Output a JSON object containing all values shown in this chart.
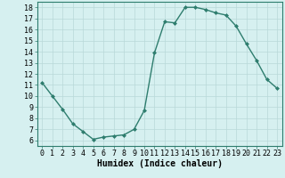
{
  "x": [
    0,
    1,
    2,
    3,
    4,
    5,
    6,
    7,
    8,
    9,
    10,
    11,
    12,
    13,
    14,
    15,
    16,
    17,
    18,
    19,
    20,
    21,
    22,
    23
  ],
  "y": [
    11.2,
    10.0,
    8.8,
    7.5,
    6.8,
    6.1,
    6.3,
    6.4,
    6.5,
    7.0,
    8.7,
    13.9,
    16.7,
    16.6,
    18.0,
    18.0,
    17.8,
    17.5,
    17.3,
    16.3,
    14.7,
    13.2,
    11.5,
    10.7
  ],
  "line_color": "#2e7d6e",
  "marker": "D",
  "markersize": 2.0,
  "bg_color": "#d6f0f0",
  "grid_color": "#b8d8d8",
  "xlabel": "Humidex (Indice chaleur)",
  "xlim": [
    -0.5,
    23.5
  ],
  "ylim": [
    5.5,
    18.5
  ],
  "yticks": [
    6,
    7,
    8,
    9,
    10,
    11,
    12,
    13,
    14,
    15,
    16,
    17,
    18
  ],
  "xticks": [
    0,
    1,
    2,
    3,
    4,
    5,
    6,
    7,
    8,
    9,
    10,
    11,
    12,
    13,
    14,
    15,
    16,
    17,
    18,
    19,
    20,
    21,
    22,
    23
  ],
  "xlabel_fontsize": 7,
  "tick_fontsize": 6,
  "linewidth": 1.0,
  "spine_color": "#2e7d6e"
}
